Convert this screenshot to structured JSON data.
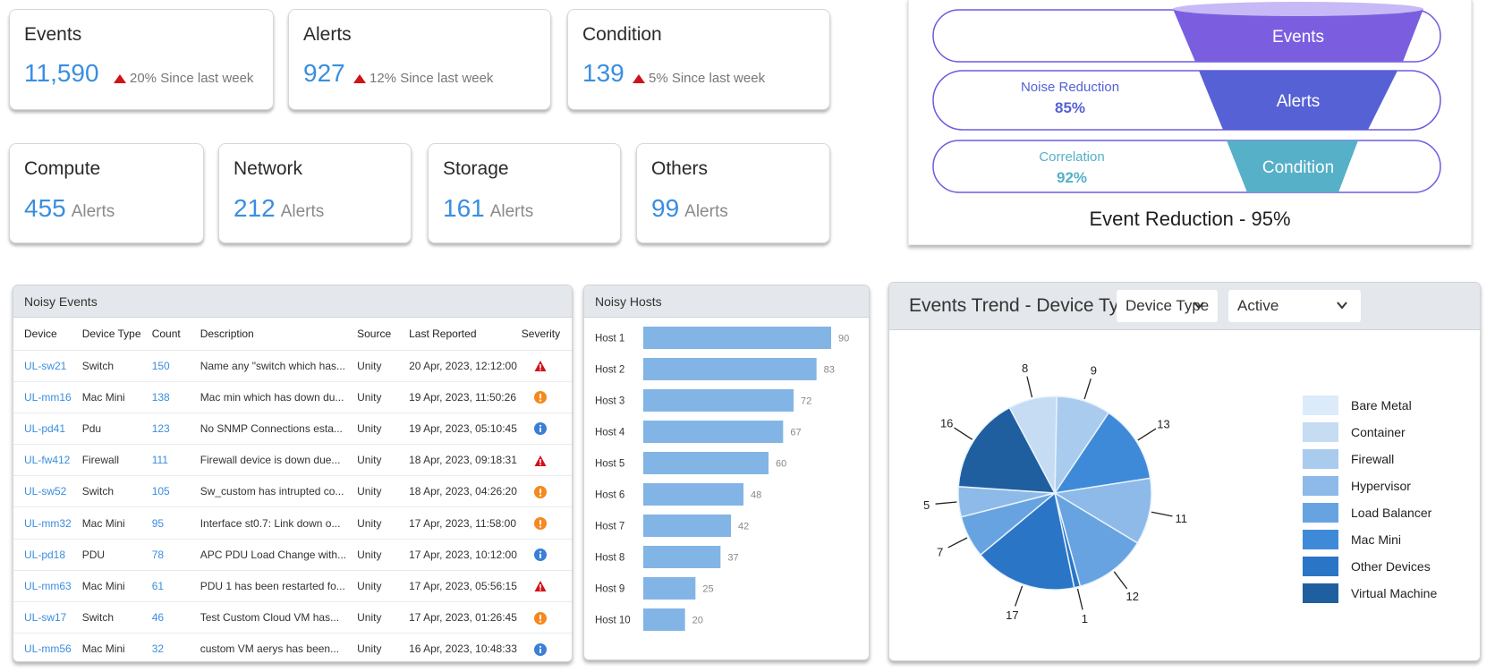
{
  "stats": [
    {
      "title": "Events",
      "value": "11,590",
      "delta": "20% Since last week",
      "trend": "up"
    },
    {
      "title": "Alerts",
      "value": "927",
      "delta": "12% Since last week",
      "trend": "up"
    },
    {
      "title": "Condition",
      "value": "139",
      "delta": "5% Since last week",
      "trend": "up"
    }
  ],
  "categories": [
    {
      "title": "Compute",
      "value": "455",
      "unit": "Alerts"
    },
    {
      "title": "Network",
      "value": "212",
      "unit": "Alerts"
    },
    {
      "title": "Storage",
      "value": "161",
      "unit": "Alerts"
    },
    {
      "title": "Others",
      "value": "99",
      "unit": "Alerts"
    }
  ],
  "funnel": {
    "stages": [
      {
        "label": "Events",
        "color": "#7b5ee0"
      },
      {
        "label": "Alerts",
        "color": "#5561d4"
      },
      {
        "label": "Condition",
        "color": "#55b0c8"
      }
    ],
    "noise_reduction": {
      "label": "Noise Reduction",
      "value": "85%",
      "color": "#5561d4"
    },
    "correlation": {
      "label": "Correlation",
      "value": "92%",
      "color": "#55b0c8"
    },
    "summary": "Event Reduction - 95%",
    "outline_color": "#6b5be0"
  },
  "noisy_events": {
    "title": "Noisy Events",
    "columns": [
      "Device",
      "Device Type",
      "Count",
      "Description",
      "Source",
      "Last Reported",
      "Severity"
    ],
    "rows": [
      {
        "device": "UL-sw21",
        "type": "Switch",
        "count": "150",
        "description": "Name any \"switch which has...",
        "source": "Unity",
        "last": "20 Apr, 2023, 12:12:00",
        "severity": "critical"
      },
      {
        "device": "UL-mm16",
        "type": "Mac Mini",
        "count": "138",
        "description": "Mac min which has down du...",
        "source": "Unity",
        "last": "19 Apr, 2023, 11:50:26",
        "severity": "warning"
      },
      {
        "device": "UL-pd41",
        "type": "Pdu",
        "count": "123",
        "description": "No SNMP Connections esta...",
        "source": "Unity",
        "last": "19 Apr, 2023, 05:10:45",
        "severity": "info"
      },
      {
        "device": "UL-fw412",
        "type": "Firewall",
        "count": "111",
        "description": "Firewall device is down due...",
        "source": "Unity",
        "last": "18 Apr, 2023, 09:18:31",
        "severity": "critical"
      },
      {
        "device": "UL-sw52",
        "type": "Switch",
        "count": "105",
        "description": "Sw_custom has intrupted co...",
        "source": "Unity",
        "last": "18 Apr, 2023, 04:26:20",
        "severity": "warning"
      },
      {
        "device": "UL-mm32",
        "type": "Mac Mini",
        "count": "95",
        "description": "Interface st0.7: Link down o...",
        "source": "Unity",
        "last": "17 Apr, 2023, 11:58:00",
        "severity": "warning"
      },
      {
        "device": "UL-pd18",
        "type": "PDU",
        "count": "78",
        "description": "APC PDU Load Change with...",
        "source": "Unity",
        "last": "17 Apr, 2023, 10:12:00",
        "severity": "info"
      },
      {
        "device": "UL-mm63",
        "type": "Mac Mini",
        "count": "61",
        "description": "PDU 1 has been restarted fo...",
        "source": "Unity",
        "last": "17 Apr, 2023, 05:56:15",
        "severity": "critical"
      },
      {
        "device": "UL-sw17",
        "type": "Switch",
        "count": "46",
        "description": "Test Custom Cloud VM has...",
        "source": "Unity",
        "last": "17 Apr, 2023, 01:26:45",
        "severity": "warning"
      },
      {
        "device": "UL-mm56",
        "type": "Mac Mini",
        "count": "32",
        "description": "custom VM aerys has been...",
        "source": "Unity",
        "last": "16 Apr, 2023, 10:48:33",
        "severity": "info"
      }
    ],
    "severity_colors": {
      "critical": "#d0121b",
      "warning": "#f5891f",
      "info": "#3a7fd5"
    }
  },
  "events_trend": {
    "title": "Events Trend - Device Type",
    "filter_group_by": "Device Type",
    "filter_status": "Active"
  },
  "chart_data": [
    {
      "type": "bar",
      "orientation": "horizontal",
      "title": "Noisy Hosts",
      "categories": [
        "Host 1",
        "Host 2",
        "Host 3",
        "Host 4",
        "Host 5",
        "Host 6",
        "Host 7",
        "Host 8",
        "Host 9",
        "Host 10"
      ],
      "values": [
        90,
        83,
        72,
        67,
        60,
        48,
        42,
        37,
        25,
        20
      ],
      "xlim": [
        0,
        90
      ],
      "bar_color": "#82b5e6",
      "grid": false,
      "data_labels": true
    },
    {
      "type": "pie",
      "title": "Events Trend - Device Type",
      "legend": [
        "Bare Metal",
        "Container",
        "Firewall",
        "Hypervisor",
        "Load Balancer",
        "Mac Mini",
        "Other Devices",
        "Virtual Machine"
      ],
      "legend_colors": [
        "#dcebfa",
        "#c5dcf3",
        "#a9cbee",
        "#8dbae8",
        "#67a3e1",
        "#3f8ad8",
        "#2a75c6",
        "#1f5f9f"
      ],
      "legend_position": "right",
      "slices_clockwise_from_top": [
        {
          "value": 9,
          "color": "#a9cbee"
        },
        {
          "value": 13,
          "color": "#3f8ad8"
        },
        {
          "value": 11,
          "color": "#8dbae8"
        },
        {
          "value": 12,
          "color": "#67a3e1"
        },
        {
          "value": 1,
          "color": "#2a75c6"
        },
        {
          "value": 17,
          "color": "#2a75c6"
        },
        {
          "value": 7,
          "color": "#67a3e1"
        },
        {
          "value": 5,
          "color": "#8dbae8"
        },
        {
          "value": 16,
          "color": "#1f5f9f"
        },
        {
          "value": 8,
          "color": "#c5dcf3"
        }
      ]
    }
  ]
}
